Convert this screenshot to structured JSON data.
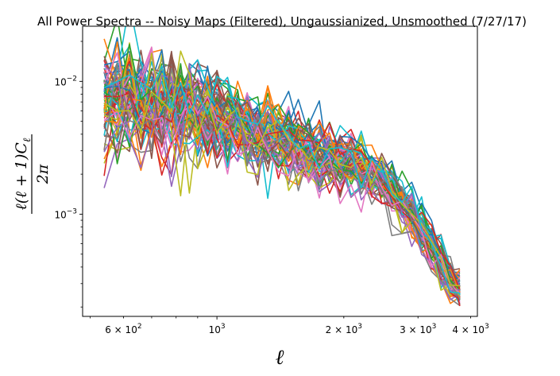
{
  "chart_data": {
    "type": "line",
    "title": "All Power Spectra -- Noisy Maps (Filtered), Ungaussianized, Unsmoothed (7/27/17)",
    "xlabel": "ℓ",
    "ylabel_top": "ℓ(ℓ + 1)C",
    "ylabel_sub": "ℓ",
    "ylabel_bottom": "2π",
    "xscale": "log",
    "yscale": "log",
    "xlim": [
      480,
      4150
    ],
    "ylim": [
      0.00017,
      0.026
    ],
    "grid": false,
    "legend": "none",
    "x_major_ticks": [
      {
        "value": 1000,
        "label": "10",
        "exp": "3"
      }
    ],
    "x_minor_ticks": [
      {
        "value": 600,
        "label": "6 × 10",
        "exp": "2"
      },
      {
        "value": 2000,
        "label": "2 × 10",
        "exp": "3"
      },
      {
        "value": 3000,
        "label": "3 × 10",
        "exp": "3"
      },
      {
        "value": 4000,
        "label": "4 × 10",
        "exp": "3"
      }
    ],
    "y_major_ticks": [
      {
        "value": 0.001,
        "label": "10",
        "exp": "−3"
      },
      {
        "value": 0.01,
        "label": "10",
        "exp": "−2"
      }
    ],
    "x": [
      540,
      580,
      620,
      660,
      700,
      740,
      780,
      820,
      860,
      900,
      950,
      1000,
      1060,
      1120,
      1180,
      1250,
      1320,
      1400,
      1480,
      1560,
      1650,
      1750,
      1850,
      1960,
      2080,
      2200,
      2330,
      2460,
      2600,
      2750,
      2900,
      3060,
      3230,
      3400,
      3580,
      3770
    ],
    "trend": [
      0.0069,
      0.0071,
      0.0072,
      0.0072,
      0.0071,
      0.007,
      0.0068,
      0.0066,
      0.0063,
      0.006,
      0.0057,
      0.0054,
      0.0051,
      0.0048,
      0.0045,
      0.0042,
      0.0039,
      0.0036,
      0.0034,
      0.0032,
      0.003,
      0.0028,
      0.0027,
      0.0026,
      0.0025,
      0.0023,
      0.0021,
      0.0018,
      0.00153,
      0.00125,
      0.00097,
      0.00075,
      0.00057,
      0.00043,
      0.00034,
      0.000285
    ],
    "series_count": 80,
    "colors": [
      "#1f77b4",
      "#ff7f0e",
      "#2ca02c",
      "#d62728",
      "#9467bd",
      "#8c564b",
      "#e377c2",
      "#7f7f7f",
      "#bcbd22",
      "#17becf"
    ]
  }
}
